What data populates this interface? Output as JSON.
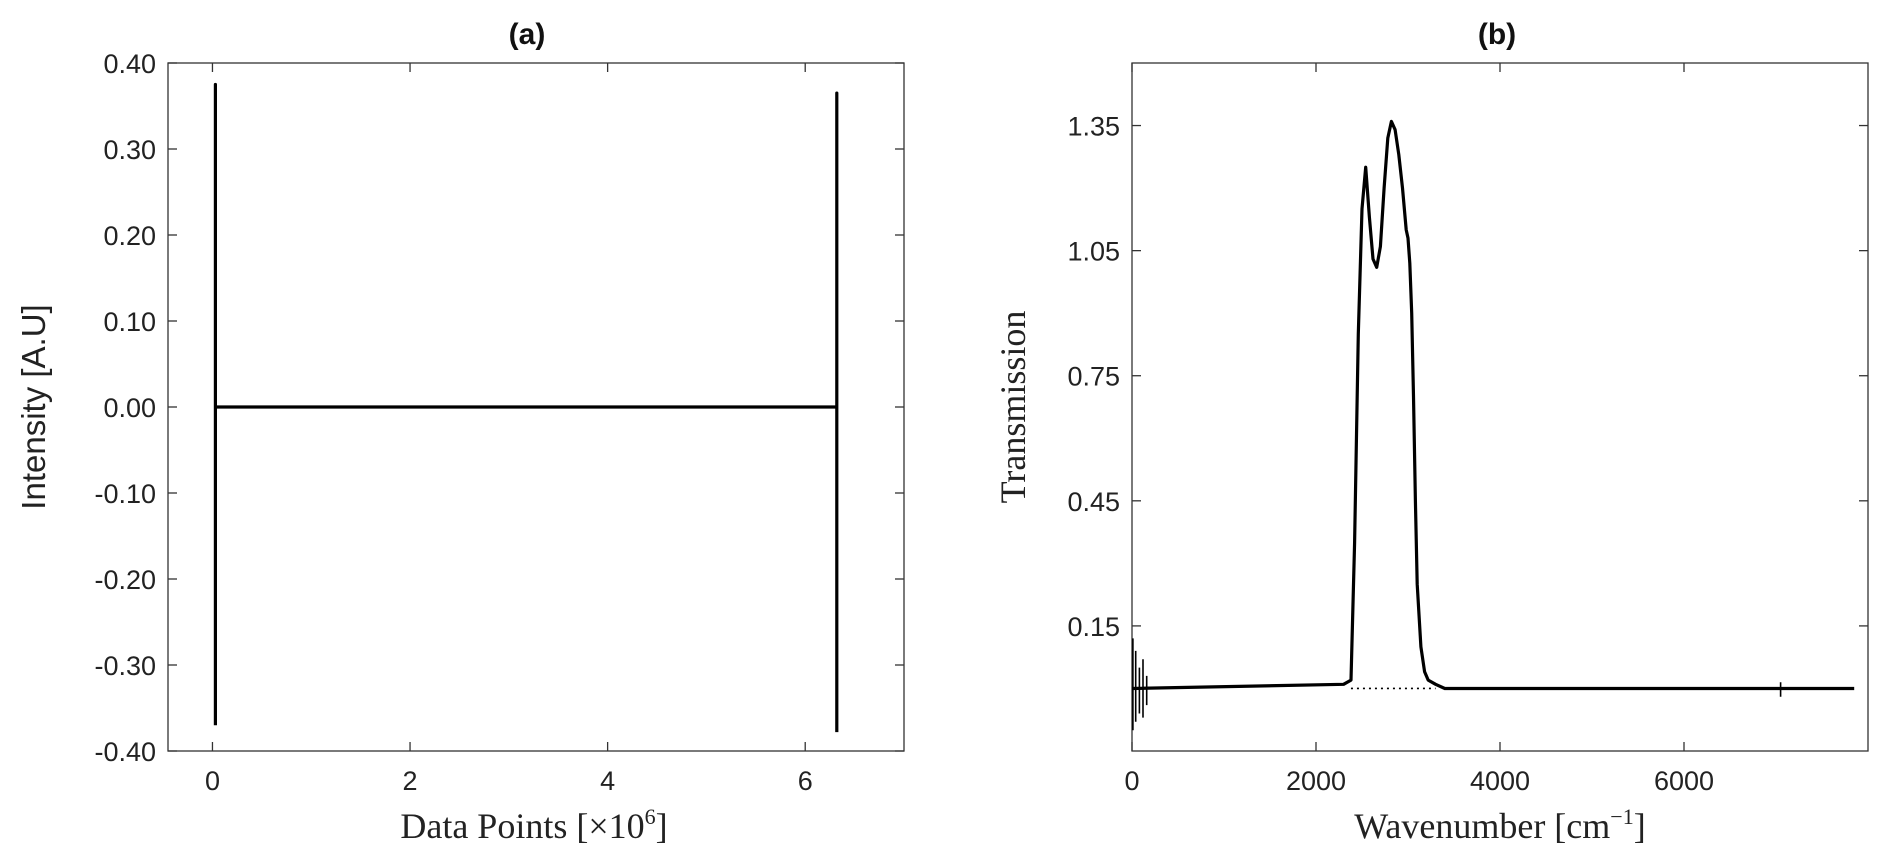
{
  "chart_data": [
    {
      "type": "line",
      "title": "(a)",
      "xlabel_main": "Data Points [",
      "xlabel_mult": "×10",
      "xlabel_sup": "6",
      "xlabel_end": "]",
      "ylabel": "Intensity [A.U]",
      "xlim": [
        -0.45,
        7.0
      ],
      "ylim": [
        -0.4,
        0.4
      ],
      "xticks": [
        0,
        2,
        4,
        6
      ],
      "xtick_labels": [
        "0",
        "2",
        "4",
        "6"
      ],
      "yticks": [
        0.4,
        0.3,
        0.2,
        0.1,
        0.0,
        -0.1,
        -0.2,
        -0.3,
        -0.4
      ],
      "ytick_labels": [
        "0.40",
        "0.30",
        "0.20",
        "0.10",
        "0.00",
        "-0.10",
        "-0.20",
        "-0.30",
        "-0.40"
      ],
      "grid": false,
      "series": [
        {
          "x": [
            0.03,
            0.03,
            0.03,
            0.03,
            6.32,
            6.32,
            6.32
          ],
          "y": [
            -0.37,
            0.375,
            0.0,
            0.0,
            0.0,
            0.365,
            -0.378
          ]
        }
      ]
    },
    {
      "type": "line",
      "title": "(b)",
      "xlabel_main": "Wavenumber [cm",
      "xlabel_sup": "−1",
      "xlabel_end": "]",
      "ylabel": "Transmission",
      "xlim": [
        0,
        8000
      ],
      "ylim": [
        -0.15,
        1.5
      ],
      "xticks": [
        0,
        2000,
        4000,
        6000
      ],
      "xtick_labels": [
        "0",
        "2000",
        "4000",
        "6000"
      ],
      "yticks": [
        1.35,
        1.05,
        0.75,
        0.45,
        0.15
      ],
      "ytick_labels": [
        "1.35",
        "1.05",
        "0.75",
        "0.45",
        "0.15"
      ],
      "grid": false,
      "series": [
        {
          "x": [
            0,
            2300,
            2380,
            2420,
            2460,
            2500,
            2540,
            2580,
            2620,
            2660,
            2700,
            2740,
            2780,
            2820,
            2860,
            2900,
            2940,
            2980,
            3000,
            3020,
            3040,
            3060,
            3080,
            3100,
            3140,
            3180,
            3220,
            3300,
            3400,
            7050,
            7100,
            7850
          ],
          "y": [
            0.0,
            0.01,
            0.02,
            0.35,
            0.85,
            1.15,
            1.25,
            1.13,
            1.03,
            1.01,
            1.06,
            1.2,
            1.32,
            1.36,
            1.34,
            1.28,
            1.2,
            1.1,
            1.08,
            1.02,
            0.9,
            0.7,
            0.45,
            0.25,
            0.1,
            0.04,
            0.02,
            0.01,
            0.0,
            0.0,
            0.0,
            0.0
          ]
        }
      ],
      "baseline": {
        "x": [
          2380,
          3300
        ],
        "y": [
          0.0,
          0.0
        ]
      }
    }
  ]
}
